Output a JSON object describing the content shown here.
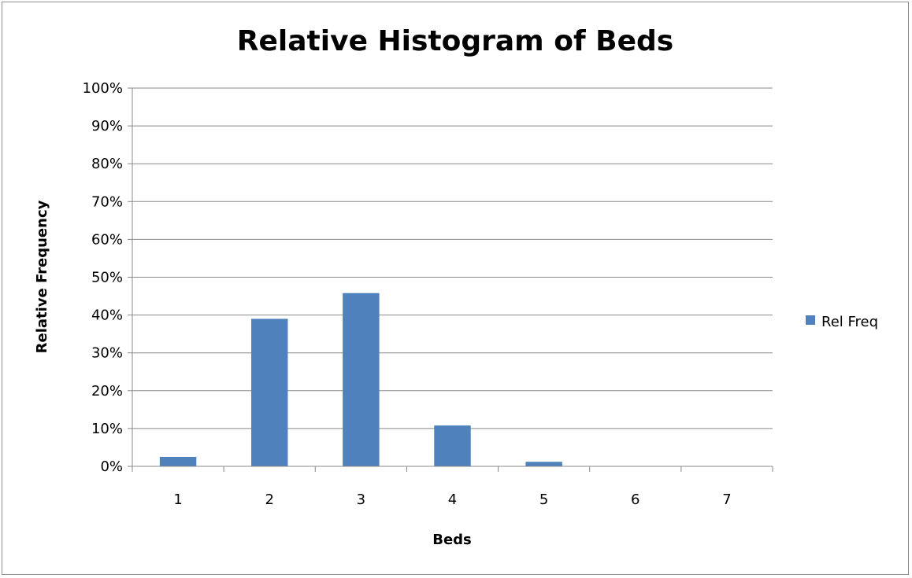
{
  "chart_data": {
    "type": "bar",
    "title": "Relative Histogram of Beds",
    "xlabel": "Beds",
    "ylabel": "Relative Frequency",
    "categories": [
      "1",
      "2",
      "3",
      "4",
      "5",
      "6",
      "7"
    ],
    "series": [
      {
        "name": "Rel Freq",
        "values": [
          2.5,
          39,
          45.8,
          10.8,
          1.2,
          0,
          0
        ],
        "color": "#4f81bd"
      }
    ],
    "ylim": [
      0,
      100
    ],
    "yticks": [
      "0%",
      "10%",
      "20%",
      "30%",
      "40%",
      "50%",
      "60%",
      "70%",
      "80%",
      "90%",
      "100%"
    ],
    "grid": true,
    "legend_position": "right"
  }
}
